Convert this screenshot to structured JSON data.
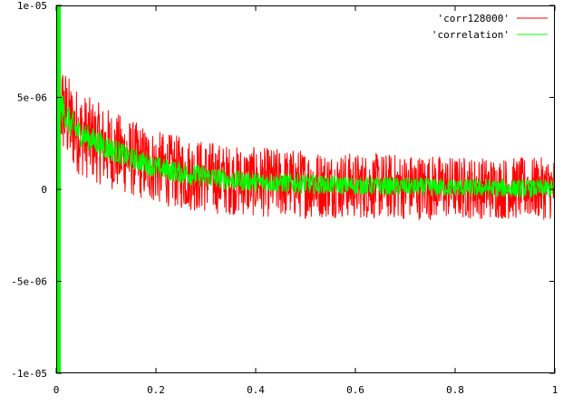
{
  "chart_data": {
    "type": "line",
    "title": "",
    "xlabel": "",
    "ylabel": "",
    "xlim": [
      0,
      1
    ],
    "ylim": [
      -1e-05,
      1e-05
    ],
    "grid": false,
    "legend_position": "top-right",
    "x_ticks": [
      {
        "value": 0,
        "label": "0"
      },
      {
        "value": 0.2,
        "label": "0.2"
      },
      {
        "value": 0.4,
        "label": "0.4"
      },
      {
        "value": 0.6,
        "label": "0.6"
      },
      {
        "value": 0.8,
        "label": "0.8"
      },
      {
        "value": 1,
        "label": "1"
      }
    ],
    "y_ticks": [
      {
        "value": 1e-05,
        "label": "1e-05"
      },
      {
        "value": 5e-06,
        "label": "5e-06"
      },
      {
        "value": 0,
        "label": "0"
      },
      {
        "value": -5e-06,
        "label": "-5e-06"
      },
      {
        "value": -1e-05,
        "label": "-1e-05"
      }
    ],
    "series": [
      {
        "name": "'corr128000'",
        "color": "#ff0000",
        "spike": {
          "x": 0.0,
          "y_range": [
            -1e-05,
            -8e-06
          ]
        },
        "x": [
          0.0,
          0.005,
          0.01,
          0.02,
          0.03,
          0.05,
          0.1,
          0.15,
          0.2,
          0.25,
          0.3,
          0.35,
          0.4,
          0.45,
          0.5,
          0.55,
          0.6,
          0.65,
          0.7,
          0.75,
          0.8,
          0.85,
          0.9,
          0.95,
          1.0
        ],
        "center": [
          4.5e-06,
          5e-06,
          4.5e-06,
          4e-06,
          3.5e-06,
          3e-06,
          2.3e-06,
          1.7e-06,
          1.2e-06,
          9e-07,
          7e-07,
          5e-07,
          4e-07,
          3.5e-07,
          3e-07,
          2.5e-07,
          2e-07,
          1.8e-07,
          1.5e-07,
          1.2e-07,
          1e-07,
          8e-08,
          6e-08,
          5e-08,
          4e-08
        ],
        "spread": [
          2e-06,
          2.4e-06,
          2.5e-06,
          2.5e-06,
          2.4e-06,
          2.3e-06,
          2.2e-06,
          2.1e-06,
          2e-06,
          2e-06,
          2e-06,
          1.9e-06,
          1.9e-06,
          1.9e-06,
          1.9e-06,
          1.8e-06,
          1.8e-06,
          1.8e-06,
          1.8e-06,
          1.8e-06,
          1.7e-06,
          1.7e-06,
          1.7e-06,
          1.7e-06,
          1.7e-06
        ]
      },
      {
        "name": "'correlation'",
        "color": "#00ff00",
        "spike": {
          "x": 0.0,
          "y_range": [
            -1e-05,
            1e-05
          ]
        },
        "x": [
          0.0,
          0.005,
          0.01,
          0.02,
          0.03,
          0.05,
          0.1,
          0.15,
          0.2,
          0.25,
          0.3,
          0.35,
          0.4,
          0.45,
          0.5,
          0.55,
          0.6,
          0.65,
          0.7,
          0.75,
          0.8,
          0.85,
          0.9,
          0.95,
          1.0
        ],
        "center": [
          4.5e-06,
          5e-06,
          4.5e-06,
          4e-06,
          3.5e-06,
          3e-06,
          2.3e-06,
          1.7e-06,
          1.2e-06,
          9e-07,
          7e-07,
          5e-07,
          4e-07,
          3.5e-07,
          3e-07,
          2.5e-07,
          2e-07,
          1.8e-07,
          1.5e-07,
          1.2e-07,
          1e-07,
          8e-08,
          6e-08,
          5e-08,
          4e-08
        ],
        "spread": [
          7e-07,
          9e-07,
          9e-07,
          8e-07,
          8e-07,
          7e-07,
          7e-07,
          6e-07,
          6e-07,
          6e-07,
          6e-07,
          5.5e-07,
          5.5e-07,
          5.5e-07,
          5.5e-07,
          5e-07,
          5e-07,
          5e-07,
          5e-07,
          5e-07,
          5e-07,
          5e-07,
          5e-07,
          5e-07,
          5e-07
        ]
      }
    ]
  }
}
